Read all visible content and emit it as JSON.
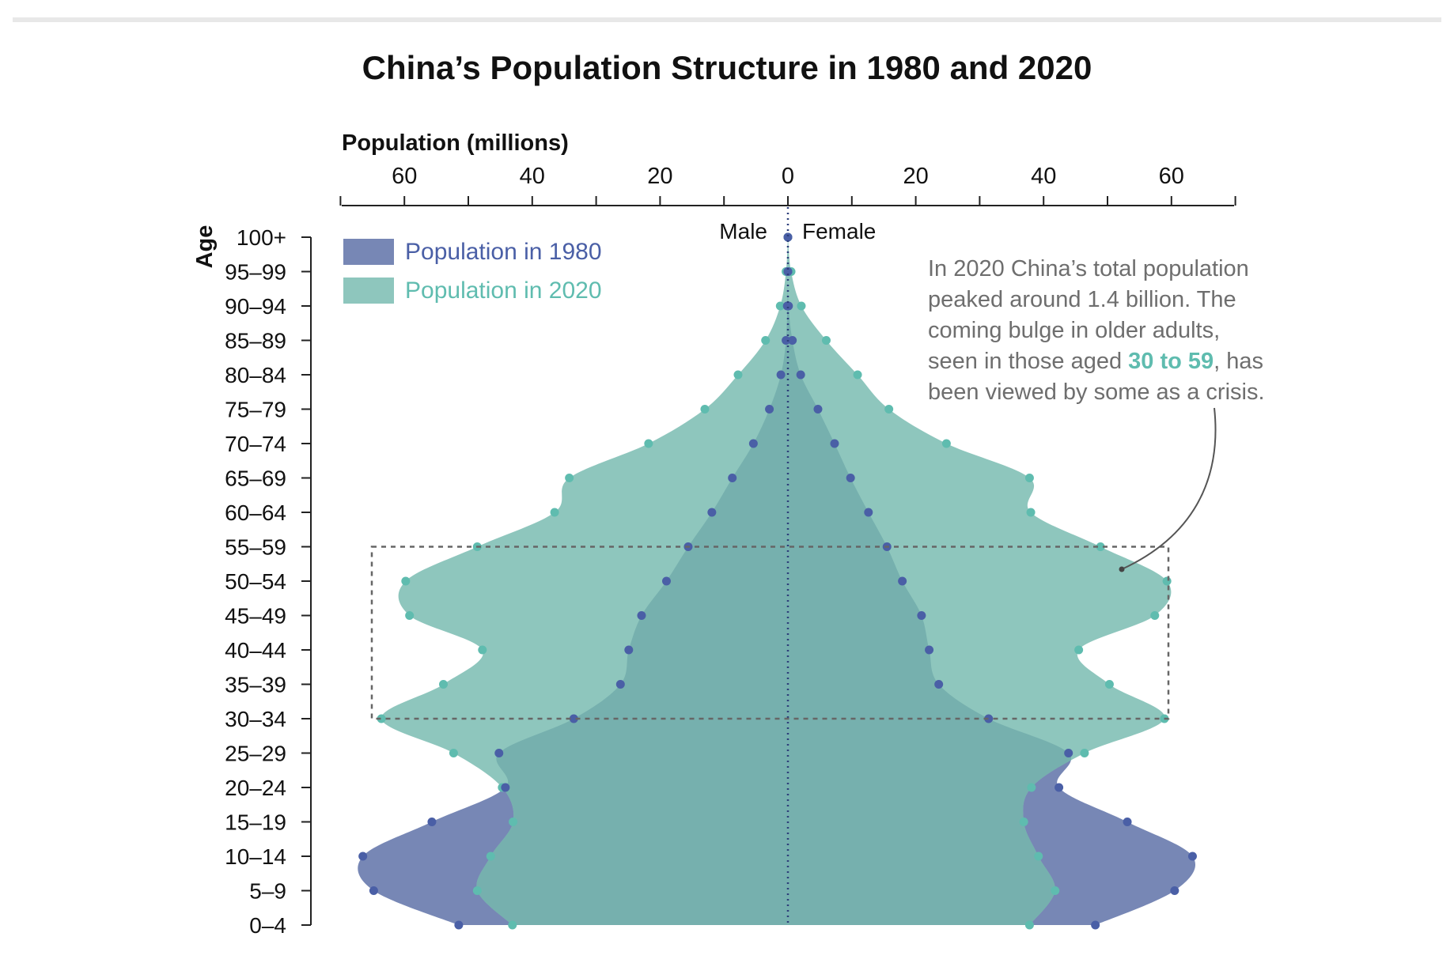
{
  "chart_data": {
    "type": "population-pyramid",
    "title": "China’s Population Structure in 1980 and 2020",
    "xlabel": "Population (millions)",
    "ylabel": "Age",
    "xlim": [
      -70,
      70
    ],
    "x_ticks": [
      -60,
      -40,
      -20,
      0,
      20,
      40,
      60
    ],
    "x_tick_labels": [
      "60",
      "40",
      "20",
      "0",
      "20",
      "40",
      "60"
    ],
    "side_labels": {
      "male": "Male",
      "female": "Female"
    },
    "age_groups": [
      "0–4",
      "5–9",
      "10–14",
      "15–19",
      "20–24",
      "25–29",
      "30–34",
      "35–39",
      "40–44",
      "45–49",
      "50–54",
      "55–59",
      "60–64",
      "65–69",
      "70–74",
      "75–79",
      "80–84",
      "85–89",
      "90–94",
      "95–99",
      "100+"
    ],
    "series": [
      {
        "name": "Population in 1980",
        "color": "#7787b5",
        "point_color": "#4a5fa6",
        "male": [
          51.5,
          64.8,
          66.5,
          55.7,
          44.2,
          45.2,
          33.5,
          26.2,
          24.9,
          22.9,
          19.0,
          15.6,
          11.9,
          8.7,
          5.4,
          2.9,
          1.1,
          0.3,
          0.1,
          0.0,
          0.0
        ],
        "female": [
          48.1,
          60.5,
          63.3,
          53.1,
          42.4,
          43.9,
          31.4,
          23.6,
          22.1,
          20.9,
          17.9,
          15.5,
          12.6,
          9.8,
          7.3,
          4.7,
          2.0,
          0.7,
          0.1,
          0.0,
          0.0
        ]
      },
      {
        "name": "Population in 2020",
        "color": "#8ec6bd",
        "point_color": "#5fbcaf",
        "male": [
          43.1,
          48.6,
          46.5,
          43.0,
          44.7,
          52.3,
          63.6,
          53.9,
          47.8,
          59.2,
          59.8,
          48.6,
          36.5,
          34.2,
          21.8,
          13.0,
          7.8,
          3.5,
          1.2,
          0.3,
          0.0
        ],
        "female": [
          37.8,
          41.8,
          39.2,
          36.9,
          38.1,
          46.4,
          58.9,
          50.3,
          45.5,
          57.4,
          59.3,
          48.9,
          38.0,
          37.8,
          24.8,
          15.8,
          10.9,
          6.0,
          2.1,
          0.5,
          0.0
        ]
      }
    ],
    "highlight_range": [
      "30–34",
      "55–59"
    ],
    "annotation": {
      "lines": [
        "In 2020 China’s total population",
        "peaked around 1.4 billion. The",
        "coming bulge in older adults,"
      ],
      "line4_before": "seen in those aged ",
      "line4_highlight": "30 to 59",
      "line4_after": ", has",
      "line5": "been viewed by some as a crisis."
    }
  }
}
